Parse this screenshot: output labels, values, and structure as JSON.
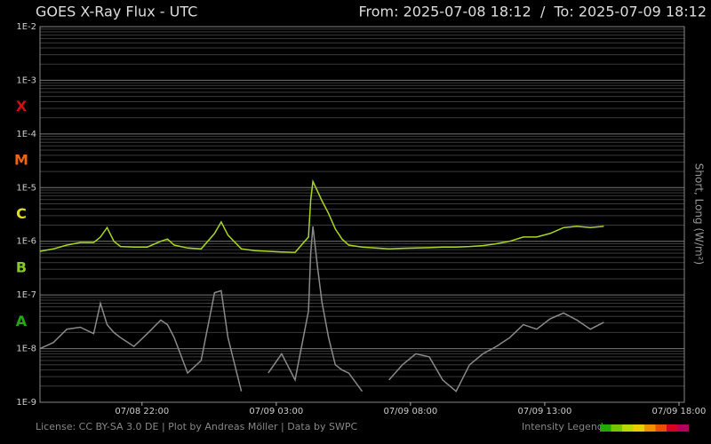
{
  "chart_data": {
    "type": "line",
    "title": "GOES X-Ray Flux - UTC",
    "range_text": "From: 2025-07-08 18:12  /  To: 2025-07-09 18:12",
    "y_label": "Short, Long (W/m²)",
    "footer": "License: CC BY-SA 3.0 DE | Plot by Andreas Möller | Data by SWPC",
    "intensity_legend": {
      "label": "Intensity Legend",
      "colors": [
        "#22aa00",
        "#77c400",
        "#b8d800",
        "#e8d000",
        "#f09000",
        "#e85000",
        "#d80020",
        "#b00060"
      ]
    },
    "log_y": true,
    "grid": true,
    "minor_grid": true,
    "ylim": [
      1e-09,
      0.01
    ],
    "yticks": [
      {
        "value": 1e-09,
        "label": "1E-9"
      },
      {
        "value": 1e-08,
        "label": "1E-8"
      },
      {
        "value": 1e-07,
        "label": "1E-7"
      },
      {
        "value": 1e-06,
        "label": "1E-6"
      },
      {
        "value": 1e-05,
        "label": "1E-5"
      },
      {
        "value": 0.0001,
        "label": "1E-4"
      },
      {
        "value": 0.001,
        "label": "1E-3"
      },
      {
        "value": 0.01,
        "label": "1E-2"
      }
    ],
    "flare_classes": [
      {
        "label": "X",
        "value": 0.0001,
        "color": "#cc1111"
      },
      {
        "label": "M",
        "value": 1e-05,
        "color": "#ee6611"
      },
      {
        "label": "C",
        "value": 1e-06,
        "color": "#dddd22"
      },
      {
        "label": "B",
        "value": 1e-07,
        "color": "#88cc22"
      },
      {
        "label": "A",
        "value": 1e-08,
        "color": "#22aa11"
      }
    ],
    "xlim": [
      "07/08 18:12",
      "07/09 18:12"
    ],
    "xticks": [
      "07/08 22:00",
      "07/09 03:00",
      "07/09 08:00",
      "07/09 13:00",
      "07/09 18:00"
    ],
    "x": [
      "07/08 18:12",
      "07/08 18:42",
      "07/08 19:12",
      "07/08 19:42",
      "07/08 20:12",
      "07/08 20:27",
      "07/08 20:42",
      "07/08 20:57",
      "07/08 21:12",
      "07/08 21:42",
      "07/08 22:12",
      "07/08 22:42",
      "07/08 22:57",
      "07/08 23:12",
      "07/08 23:42",
      "07/09 00:12",
      "07/09 00:42",
      "07/09 00:57",
      "07/09 01:12",
      "07/09 01:42",
      "07/09 02:12",
      "07/09 02:42",
      "07/09 03:12",
      "07/09 03:42",
      "07/09 04:12",
      "07/09 04:17",
      "07/09 04:22",
      "07/09 04:32",
      "07/09 04:42",
      "07/09 04:57",
      "07/09 05:12",
      "07/09 05:27",
      "07/09 05:42",
      "07/09 06:12",
      "07/09 06:42",
      "07/09 07:12",
      "07/09 07:42",
      "07/09 08:12",
      "07/09 08:42",
      "07/09 09:12",
      "07/09 09:42",
      "07/09 10:12",
      "07/09 10:42",
      "07/09 11:12",
      "07/09 11:42",
      "07/09 12:12",
      "07/09 12:42",
      "07/09 13:12",
      "07/09 13:42",
      "07/09 14:12",
      "07/09 14:42",
      "07/09 15:12"
    ],
    "series": [
      {
        "color": "#a8d820",
        "values": [
          6.5e-07,
          7.2e-07,
          8.5e-07,
          9.5e-07,
          9.5e-07,
          1.2e-06,
          1.8e-06,
          1e-06,
          8e-07,
          7.8e-07,
          7.8e-07,
          1e-06,
          1.1e-06,
          8.5e-07,
          7.5e-07,
          7.2e-07,
          1.4e-06,
          2.3e-06,
          1.3e-06,
          7.2e-07,
          6.7e-07,
          6.5e-07,
          6.3e-07,
          6.2e-07,
          1.2e-06,
          5.9e-06,
          1.3e-05,
          8.6e-06,
          5.7e-06,
          3.3e-06,
          1.7e-06,
          1.1e-06,
          8.5e-07,
          7.8e-07,
          7.5e-07,
          7.2e-07,
          7.4e-07,
          7.5e-07,
          7.6e-07,
          7.8e-07,
          7.8e-07,
          8e-07,
          8.3e-07,
          9e-07,
          1e-06,
          1.2e-06,
          1.2e-06,
          1.4e-06,
          1.8e-06,
          1.9e-06,
          1.8e-06,
          1.9e-06
        ]
      },
      {
        "color": "#8a8a8a",
        "values": [
          1e-08,
          1.3e-08,
          2.3e-08,
          2.5e-08,
          1.9e-08,
          7e-08,
          2.8e-08,
          2e-08,
          1.6e-08,
          1.1e-08,
          1.9e-08,
          3.4e-08,
          2.8e-08,
          1.6e-08,
          3.5e-09,
          6e-09,
          1.1e-07,
          1.2e-07,
          1.6e-08,
          1.6e-09,
          null,
          3.5e-09,
          8e-09,
          2.6e-09,
          5e-08,
          6e-07,
          1.9e-06,
          3.4e-07,
          7.4e-08,
          1.6e-08,
          5e-09,
          4e-09,
          3.5e-09,
          1.6e-09,
          null,
          2.6e-09,
          5e-09,
          8e-09,
          7e-09,
          2.6e-09,
          1.6e-09,
          5e-09,
          8e-09,
          1.1e-08,
          1.6e-08,
          2.8e-08,
          2.3e-08,
          3.6e-08,
          4.6e-08,
          3.4e-08,
          2.3e-08,
          3.1e-08
        ]
      }
    ]
  }
}
